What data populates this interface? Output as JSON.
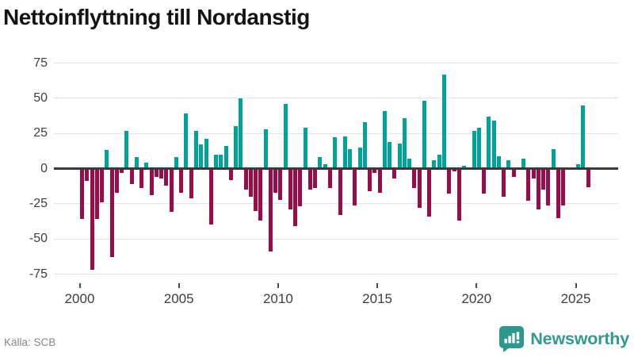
{
  "header": {
    "title": "Nettoinflyttning till Nordanstig"
  },
  "footer": {
    "source": "Källa: SCB",
    "brand": "Newsworthy"
  },
  "colors": {
    "positive": "#00a39b",
    "negative": "#9b0c49",
    "grid": "#e4e4e4",
    "zero_axis": "#3a3a3a",
    "tick_text": "#3d3d3d",
    "title_text": "#141414",
    "source_text": "#878787",
    "brand_teal": "#35988f"
  },
  "chart_data": {
    "type": "bar",
    "title": "Nettoinflyttning till Nordanstig",
    "xlabel": "",
    "ylabel": "",
    "start": "2000-Q1",
    "frequency": "quarterly",
    "ylim": [
      -75,
      75
    ],
    "y_ticks": [
      75,
      50,
      25,
      0,
      -25,
      -50,
      -75
    ],
    "x_tick_years": [
      2000,
      2005,
      2010,
      2015,
      2020,
      2025
    ],
    "grid": true,
    "legend": false,
    "values": [
      -36,
      -9,
      -72,
      -36,
      -24,
      13,
      -63,
      -17,
      -3,
      27,
      -11,
      8,
      -14,
      4,
      -19,
      -6,
      -7,
      -12,
      -31,
      8,
      -17,
      39,
      -21,
      27,
      17,
      21,
      -40,
      10,
      10,
      16,
      -8,
      30,
      50,
      -15,
      -20,
      -30,
      -37,
      28,
      -59,
      -17,
      -22,
      46,
      -29,
      -41,
      -27,
      29,
      -15,
      -14,
      8,
      3,
      -14,
      22,
      -33,
      23,
      14,
      -26,
      15,
      33,
      -16,
      -3,
      -17,
      41,
      19,
      -7,
      18,
      36,
      7,
      -14,
      -28,
      48,
      -34,
      6,
      10,
      67,
      -18,
      -2,
      -37,
      2,
      1,
      27,
      29,
      -18,
      37,
      34,
      9,
      -20,
      6,
      -6,
      1,
      7,
      -23,
      -7,
      -29,
      -15,
      -26,
      14,
      -35,
      -26,
      -1,
      1,
      3,
      45,
      -13
    ]
  }
}
